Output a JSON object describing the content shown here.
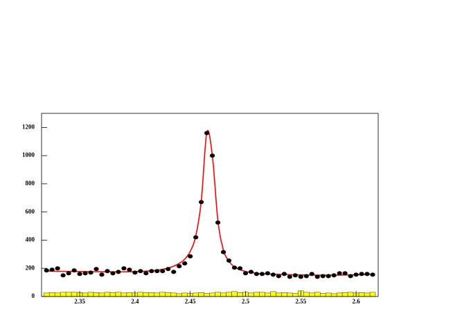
{
  "chart_data": {
    "type": "scatter",
    "xlim": [
      2.3155,
      2.62
    ],
    "ylim": [
      0,
      1300
    ],
    "xticks": [
      2.35,
      2.4,
      2.45,
      2.5,
      2.55,
      2.6
    ],
    "yticks": [
      0,
      200,
      400,
      600,
      800,
      1000,
      1200
    ],
    "series": [
      {
        "type": "histogram",
        "color": "#ffff00",
        "bins": [
          2.3175,
          2.3225,
          2.3275,
          2.3325,
          2.3375,
          2.3425,
          2.3475,
          2.3525,
          2.3575,
          2.3625,
          2.3675,
          2.3725,
          2.3775,
          2.3825,
          2.3875,
          2.3925,
          2.3975,
          2.4025,
          2.4075,
          2.4125,
          2.4175,
          2.4225,
          2.4275,
          2.4325,
          2.4375,
          2.4425,
          2.4475,
          2.4525,
          2.4575,
          2.4625,
          2.4675,
          2.4725,
          2.4775,
          2.4825,
          2.4875,
          2.4925,
          2.4975,
          2.5025,
          2.5075,
          2.5125,
          2.5175,
          2.5225,
          2.5275,
          2.5325,
          2.5375,
          2.5425,
          2.5475,
          2.5525,
          2.5575,
          2.5625,
          2.5675,
          2.5725,
          2.5775,
          2.5825,
          2.5875,
          2.5925,
          2.5975,
          2.6025,
          2.6075,
          2.6125,
          2.6175
        ],
        "values": [
          25,
          28,
          25,
          30,
          30,
          30,
          28,
          25,
          30,
          28,
          25,
          30,
          28,
          30,
          25,
          28,
          25,
          30,
          28,
          28,
          25,
          30,
          28,
          25,
          20,
          25,
          22,
          25,
          28,
          22,
          25,
          30,
          25,
          30,
          35,
          28,
          30,
          25,
          30,
          30,
          25,
          35,
          25,
          28,
          25,
          22,
          40,
          30,
          25,
          30,
          22,
          25,
          20,
          25,
          28,
          30,
          25,
          28,
          25,
          30
        ]
      },
      {
        "type": "scatter",
        "color": "#000000",
        "x": [
          2.32,
          2.325,
          2.33,
          2.335,
          2.34,
          2.345,
          2.35,
          2.355,
          2.36,
          2.365,
          2.37,
          2.375,
          2.38,
          2.385,
          2.39,
          2.395,
          2.4,
          2.405,
          2.41,
          2.415,
          2.42,
          2.425,
          2.43,
          2.435,
          2.44,
          2.445,
          2.45,
          2.455,
          2.46,
          2.465,
          2.47,
          2.475,
          2.48,
          2.485,
          2.49,
          2.495,
          2.5,
          2.505,
          2.51,
          2.515,
          2.52,
          2.525,
          2.53,
          2.535,
          2.54,
          2.545,
          2.55,
          2.555,
          2.56,
          2.565,
          2.57,
          2.575,
          2.58,
          2.585,
          2.59,
          2.595,
          2.6,
          2.605,
          2.61,
          2.615
        ],
        "values": [
          185,
          190,
          200,
          150,
          165,
          185,
          160,
          165,
          170,
          195,
          155,
          180,
          165,
          175,
          200,
          190,
          170,
          180,
          165,
          180,
          180,
          180,
          195,
          175,
          215,
          235,
          285,
          420,
          670,
          1160,
          1000,
          525,
          315,
          255,
          205,
          200,
          165,
          175,
          160,
          160,
          165,
          155,
          145,
          160,
          140,
          150,
          140,
          145,
          160,
          140,
          145,
          145,
          150,
          165,
          165,
          145,
          155,
          160,
          160,
          155
        ]
      },
      {
        "type": "line",
        "color": "#ff0000",
        "x": [
          2.32,
          2.325,
          2.33,
          2.335,
          2.34,
          2.345,
          2.35,
          2.355,
          2.36,
          2.365,
          2.37,
          2.375,
          2.38,
          2.385,
          2.39,
          2.395,
          2.4,
          2.405,
          2.41,
          2.415,
          2.42,
          2.425,
          2.43,
          2.435,
          2.44,
          2.445,
          2.45,
          2.455,
          2.46,
          2.465,
          2.47,
          2.475,
          2.48,
          2.485,
          2.49,
          2.495,
          2.5,
          2.505,
          2.51,
          2.515,
          2.52,
          2.525,
          2.53,
          2.535,
          2.54,
          2.545,
          2.55,
          2.555,
          2.56,
          2.565,
          2.57,
          2.575,
          2.58,
          2.585,
          2.59,
          2.595,
          2.6,
          2.605,
          2.61,
          2.615
        ],
        "values": [
          180,
          180,
          179,
          179,
          178,
          178,
          177,
          177,
          176,
          176,
          175,
          175,
          175,
          175,
          175,
          176,
          177,
          178,
          180,
          183,
          187,
          193,
          202,
          215,
          235,
          265,
          320,
          430,
          680,
          1165,
          1000,
          540,
          330,
          250,
          210,
          190,
          178,
          170,
          165,
          162,
          160,
          158,
          157,
          156,
          155,
          154,
          153,
          153,
          152,
          152,
          152,
          152,
          152,
          152,
          153,
          153,
          154,
          155,
          156,
          157
        ]
      }
    ]
  }
}
